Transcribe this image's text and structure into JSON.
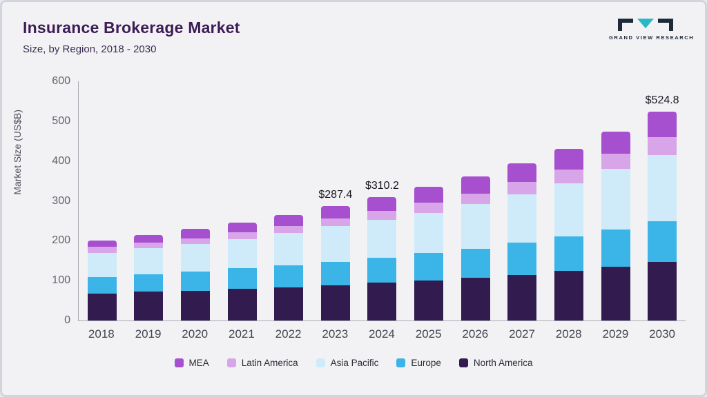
{
  "header": {
    "title": "Insurance Brokerage Market",
    "subtitle": "Size, by Region, 2018 - 2030"
  },
  "logo": {
    "text": "GRAND VIEW RESEARCH",
    "dark_color": "#1e2a3a",
    "teal_color": "#2ab8c5"
  },
  "chart_data": {
    "type": "bar",
    "stacked": true,
    "title": "Insurance Brokerage Market Size, by Region, 2018 - 2030",
    "xlabel": "",
    "ylabel": "Market Size (US$B)",
    "ylim": [
      0,
      600
    ],
    "yticks": [
      0,
      100,
      200,
      300,
      400,
      500,
      600
    ],
    "grid": false,
    "legend_position": "bottom",
    "categories": [
      "2018",
      "2019",
      "2020",
      "2021",
      "2022",
      "2023",
      "2024",
      "2025",
      "2026",
      "2027",
      "2028",
      "2029",
      "2030"
    ],
    "series": [
      {
        "name": "North America",
        "color": "#321b4f",
        "values": [
          68,
          72,
          75,
          79,
          84,
          89,
          95,
          100,
          108,
          115,
          125,
          135,
          148
        ]
      },
      {
        "name": "Europe",
        "color": "#3bb4e7",
        "values": [
          42,
          45,
          48,
          52,
          55,
          59,
          63,
          70,
          73,
          81,
          86,
          94,
          102
        ]
      },
      {
        "name": "Asia Pacific",
        "color": "#cfeaf8",
        "values": [
          60,
          65,
          69,
          74,
          81,
          89,
          95,
          100,
          112,
          122,
          134,
          152,
          167
        ]
      },
      {
        "name": "Latin America",
        "color": "#d8a6e8",
        "values": [
          15,
          14,
          15,
          17,
          18,
          19,
          22,
          26,
          27,
          30,
          35,
          38,
          45
        ]
      },
      {
        "name": "MEA",
        "color": "#a750cf",
        "values": [
          17,
          19,
          23,
          25,
          28,
          31.4,
          35.2,
          40,
          43,
          48,
          52,
          56,
          62.8
        ]
      }
    ],
    "annotations": {
      "2023": "$287.4",
      "2024": "$310.2",
      "2030": "$524.8"
    },
    "legend_order": [
      "MEA",
      "Latin America",
      "Asia Pacific",
      "Europe",
      "North America"
    ]
  }
}
